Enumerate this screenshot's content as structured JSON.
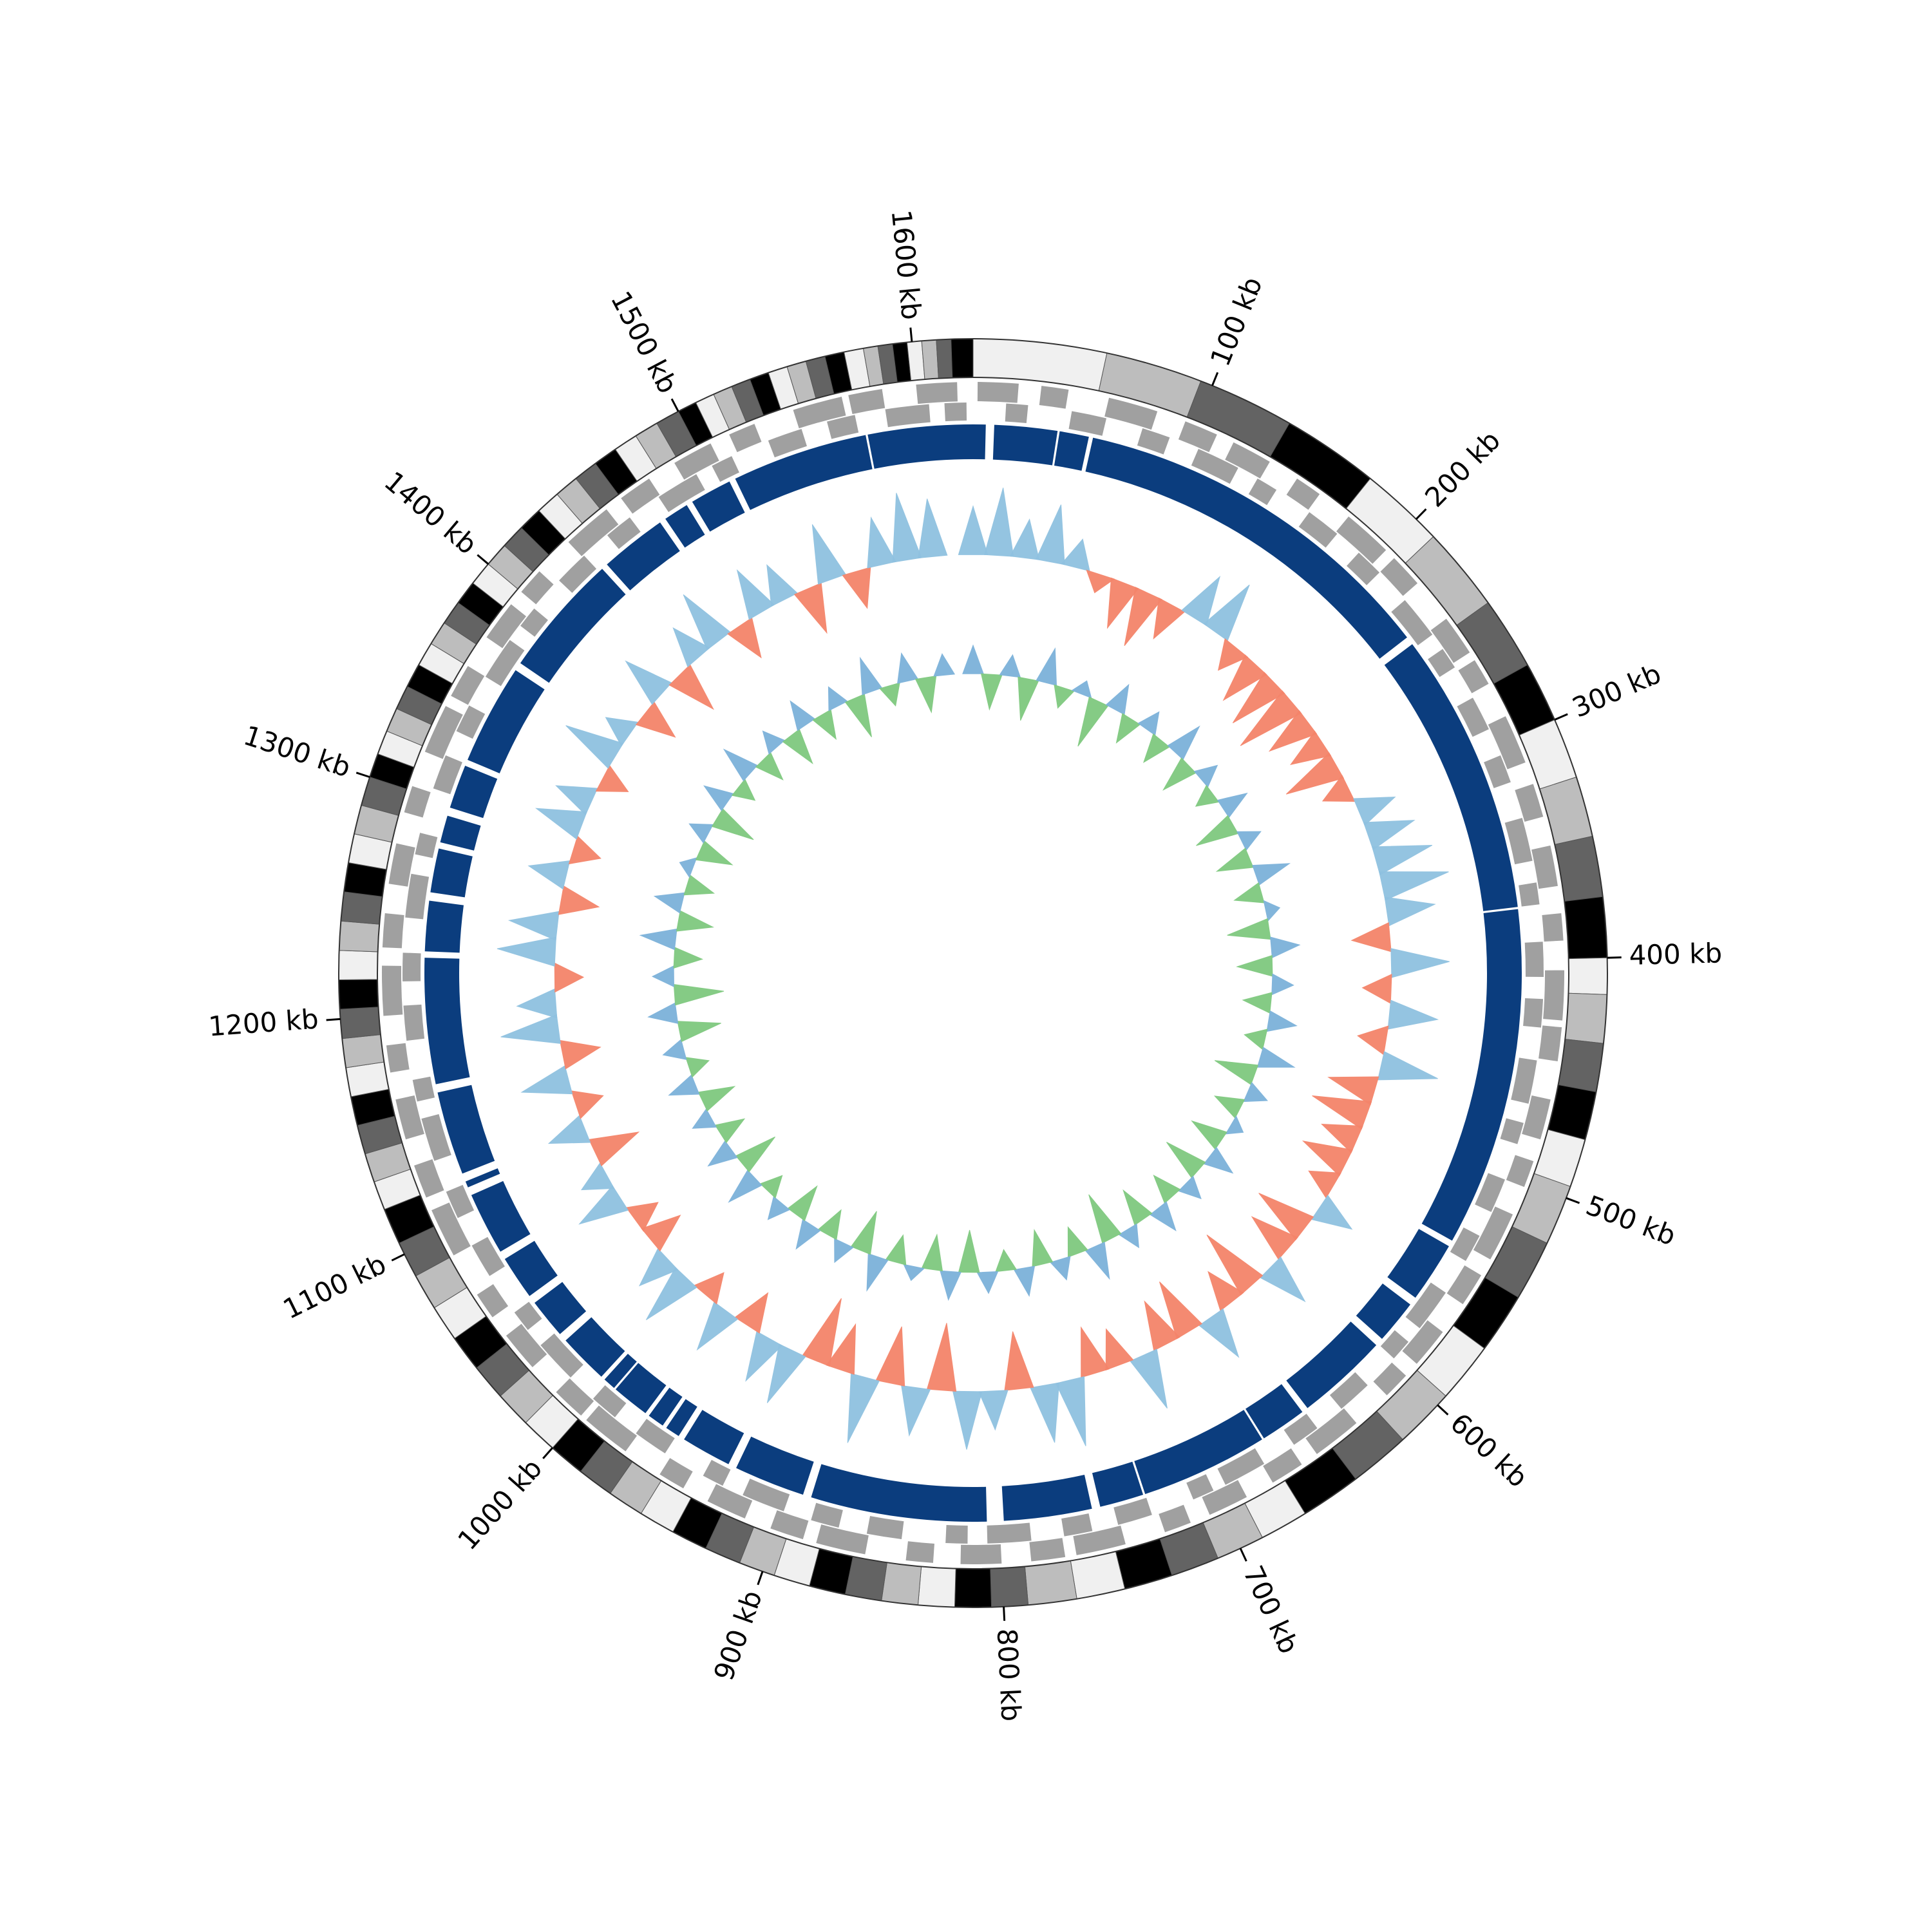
{
  "chart_data": {
    "type": "circular",
    "xlim": [
      0,
      1625
    ],
    "xticks": [
      {
        "value": 100,
        "label": "100 kb"
      },
      {
        "value": 200,
        "label": "200 kb"
      },
      {
        "value": 300,
        "label": "300 kb"
      },
      {
        "value": 400,
        "label": "400 kb"
      },
      {
        "value": 500,
        "label": "500 kb"
      },
      {
        "value": 600,
        "label": "600 kb"
      },
      {
        "value": 700,
        "label": "700 kb"
      },
      {
        "value": 800,
        "label": "800 kb"
      },
      {
        "value": 900,
        "label": "900 kb"
      },
      {
        "value": 1000,
        "label": "1000 kb"
      },
      {
        "value": 1100,
        "label": "1100 kb"
      },
      {
        "value": 1200,
        "label": "1200 kb"
      },
      {
        "value": 1300,
        "label": "1300 kb"
      },
      {
        "value": 1400,
        "label": "1400 kb"
      },
      {
        "value": 1500,
        "label": "1500 kb"
      },
      {
        "value": 1600,
        "label": "1600 kb"
      }
    ],
    "bands": {
      "palette": [
        "#f0f0f0",
        "#bdbdbd",
        "#636363",
        "#000000"
      ],
      "edges": [
        0,
        55,
        95,
        135,
        175,
        210,
        245,
        275,
        300,
        325,
        350,
        375,
        400,
        415,
        435,
        455,
        475,
        495,
        520,
        545,
        570,
        595,
        620,
        645,
        670,
        690,
        710,
        730,
        750,
        770,
        790,
        805,
        820,
        835,
        850,
        865,
        880,
        895,
        910,
        925,
        940,
        955,
        970,
        985,
        1000,
        1015,
        1030,
        1045,
        1060,
        1075,
        1090,
        1105,
        1120,
        1132,
        1144,
        1156,
        1168,
        1180,
        1192,
        1204,
        1216,
        1228,
        1240,
        1252,
        1264,
        1276,
        1288,
        1300,
        1310,
        1320,
        1330,
        1340,
        1350,
        1360,
        1370,
        1380,
        1390,
        1400,
        1410,
        1420,
        1430,
        1440,
        1450,
        1460,
        1470,
        1480,
        1490,
        1500,
        1508,
        1516,
        1524,
        1532,
        1540,
        1548,
        1556,
        1564,
        1572,
        1580,
        1586,
        1592,
        1598,
        1604,
        1610,
        1616,
        1625
      ]
    },
    "genes": {
      "color": "#a0a0a0",
      "forward": {
        "starts": [
          2,
          30,
          60,
          95,
          118,
          150,
          178,
          205,
          240,
          262,
          290,
          322,
          350,
          380,
          405,
          430,
          462,
          490,
          515,
          545,
          575,
          600,
          630,
          660,
          688,
          715,
          745,
          772,
          800,
          830,
          860,
          888,
          915,
          945,
          975,
          1000,
          1030,
          1058,
          1090,
          1118,
          1145,
          1175,
          1200,
          1230,
          1258,
          1290,
          1318,
          1345,
          1375,
          1400,
          1430,
          1460,
          1488,
          1515,
          1545,
          1570,
          1600
        ],
        "ends": [
          20,
          42,
          82,
          110,
          136,
          162,
          200,
          220,
          258,
          274,
          312,
          337,
          368,
          392,
          427,
          445,
          480,
          502,
          537,
          560,
          593,
          612,
          652,
          675,
          706,
          727,
          767,
          787,
          818,
          842,
          882,
          903,
          933,
          957,
          997,
          1015,
          1048,
          1070,
          1112,
          1133,
          1163,
          1187,
          1222,
          1245,
          1276,
          1302,
          1340,
          1360,
          1393,
          1412,
          1452,
          1475,
          1506,
          1527,
          1567,
          1585,
          1618
        ]
      },
      "reverse": {
        "starts": [
          15,
          45,
          78,
          105,
          135,
          163,
          192,
          222,
          250,
          276,
          305,
          335,
          365,
          392,
          418,
          446,
          475,
          502,
          530,
          560,
          588,
          615,
          645,
          674,
          700,
          730,
          758,
          786,
          815,
          845,
          874,
          900,
          930,
          960,
          988,
          1015,
          1044,
          1074,
          1104,
          1132,
          1160,
          1188,
          1215,
          1244,
          1273,
          1304,
          1332,
          1360,
          1388,
          1415,
          1445,
          1474,
          1502,
          1530,
          1558,
          1585,
          1612
        ],
        "ends": [
          25,
          61,
          91,
          125,
          145,
          179,
          205,
          242,
          260,
          292,
          318,
          355,
          375,
          408,
          431,
          466,
          485,
          518,
          543,
          580,
          598,
          631,
          658,
          694,
          710,
          746,
          771,
          806,
          825,
          861,
          887,
          920,
          940,
          976,
          1001,
          1035,
          1054,
          1090,
          1117,
          1152,
          1170,
          1204,
          1228,
          1264,
          1283,
          1320,
          1345,
          1380,
          1398,
          1431,
          1458,
          1494,
          1512,
          1546,
          1571,
          1605,
          1622
        ]
      }
    },
    "contigs": {
      "color": "#0b3d7e",
      "starts": [
        0,
        10,
        41,
        57,
        240,
        376,
        541,
        574,
        599,
        646,
        669,
        731,
        756,
        806,
        894,
        932,
        959,
        968,
        978,
        997,
        1005,
        1033,
        1056,
        1081,
        1115,
        1122,
        1166,
        1229,
        1257,
        1281,
        1298,
        1322,
        1374,
        1436,
        1471,
        1486,
        1509,
        1575
      ],
      "ends": [
        6,
        40,
        55,
        236,
        375,
        538,
        570,
        595,
        643,
        668,
        730,
        752,
        798,
        890,
        928,
        956,
        966,
        976,
        996,
        1003,
        1029,
        1052,
        1077,
        1111,
        1118,
        1162,
        1226,
        1253,
        1278,
        1294,
        1319,
        1370,
        1433,
        1468,
        1483,
        1506,
        1574,
        1625
      ]
    },
    "x": [
      0,
      16,
      32,
      48,
      64,
      80,
      96,
      112,
      128,
      144,
      160,
      176,
      192,
      208,
      224,
      240,
      256,
      272,
      288,
      304,
      320,
      336,
      352,
      368,
      384,
      400,
      416,
      432,
      448,
      464,
      480,
      496,
      512,
      528,
      544,
      560,
      576,
      592,
      608,
      624,
      640,
      656,
      672,
      688,
      704,
      720,
      736,
      752,
      768,
      784,
      800,
      816,
      832,
      848,
      864,
      880,
      896,
      912,
      928,
      944,
      960,
      976,
      992,
      1008,
      1024,
      1040,
      1056,
      1072,
      1088,
      1104,
      1120,
      1136,
      1152,
      1168,
      1184,
      1200,
      1216,
      1232,
      1248,
      1264,
      1280,
      1296,
      1312,
      1328,
      1344,
      1360,
      1376,
      1392,
      1408,
      1424,
      1440,
      1456,
      1472,
      1488,
      1504,
      1520,
      1536,
      1552,
      1568,
      1584,
      1600
    ],
    "tracks": [
      {
        "colors": [
          "#8fc1e0",
          "#f4846a"
        ],
        "values": [
          0.5,
          0.7,
          0.4,
          0.6,
          0.3,
          -0.2,
          -0.5,
          -0.6,
          -0.4,
          0.5,
          0.6,
          -0.3,
          -0.5,
          -0.6,
          -0.7,
          -0.5,
          -0.4,
          -0.6,
          -0.3,
          0.4,
          0.5,
          0.6,
          0.7,
          0.5,
          -0.4,
          0.6,
          -0.3,
          0.5,
          -0.3,
          0.6,
          -0.5,
          -0.6,
          -0.4,
          -0.5,
          -0.3,
          0.4,
          -0.6,
          -0.5,
          0.5,
          -0.7,
          -0.4,
          0.5,
          -0.6,
          -0.5,
          0.6,
          -0.4,
          -0.5,
          0.7,
          0.6,
          -0.6,
          0.4,
          0.6,
          -0.7,
          0.5,
          -0.6,
          0.7,
          -0.5,
          -0.7,
          0.6,
          0.5,
          -0.4,
          0.5,
          -0.3,
          0.6,
          0.4,
          -0.4,
          -0.3,
          0.5,
          0.3,
          -0.5,
          0.4,
          -0.3,
          0.5,
          -0.4,
          0.6,
          0.4,
          -0.3,
          0.6,
          0.5,
          -0.4,
          0.4,
          -0.3,
          0.5,
          0.4,
          -0.3,
          0.6,
          0.3,
          -0.4,
          0.5,
          -0.5,
          0.4,
          0.6,
          -0.4,
          0.5,
          0.4,
          -0.5,
          0.6,
          -0.4,
          0.5,
          0.7,
          0.6
        ]
      },
      {
        "colors": [
          "#7cb2da",
          "#7fc97f"
        ],
        "values": [
          0.4,
          -0.5,
          0.3,
          -0.6,
          0.5,
          -0.3,
          0.2,
          -0.7,
          0.4,
          -0.4,
          0.3,
          -0.4,
          0.5,
          -0.5,
          0.3,
          -0.3,
          0.4,
          -0.6,
          0.3,
          -0.5,
          0.5,
          -0.4,
          0.2,
          -0.6,
          0.4,
          -0.5,
          0.3,
          -0.4,
          0.4,
          -0.3,
          0.5,
          -0.6,
          0.3,
          -0.4,
          0.2,
          -0.5,
          0.4,
          -0.6,
          0.3,
          -0.4,
          0.4,
          -0.5,
          0.3,
          -0.7,
          0.5,
          -0.4,
          0.3,
          -0.5,
          0.4,
          -0.3,
          0.3,
          -0.6,
          0.4,
          -0.5,
          0.2,
          -0.4,
          0.5,
          -0.6,
          0.3,
          -0.4,
          0.4,
          -0.5,
          0.3,
          -0.3,
          0.5,
          -0.6,
          0.4,
          -0.4,
          0.3,
          -0.5,
          0.4,
          -0.3,
          0.3,
          -0.6,
          0.4,
          -0.7,
          0.3,
          -0.4,
          0.5,
          -0.5,
          0.4,
          -0.4,
          0.2,
          -0.5,
          0.3,
          -0.6,
          0.4,
          -0.3,
          0.5,
          -0.4,
          0.3,
          -0.5,
          0.4,
          -0.4,
          0.3,
          -0.6,
          0.5,
          -0.3,
          0.4,
          -0.5,
          0.3
        ]
      }
    ]
  }
}
